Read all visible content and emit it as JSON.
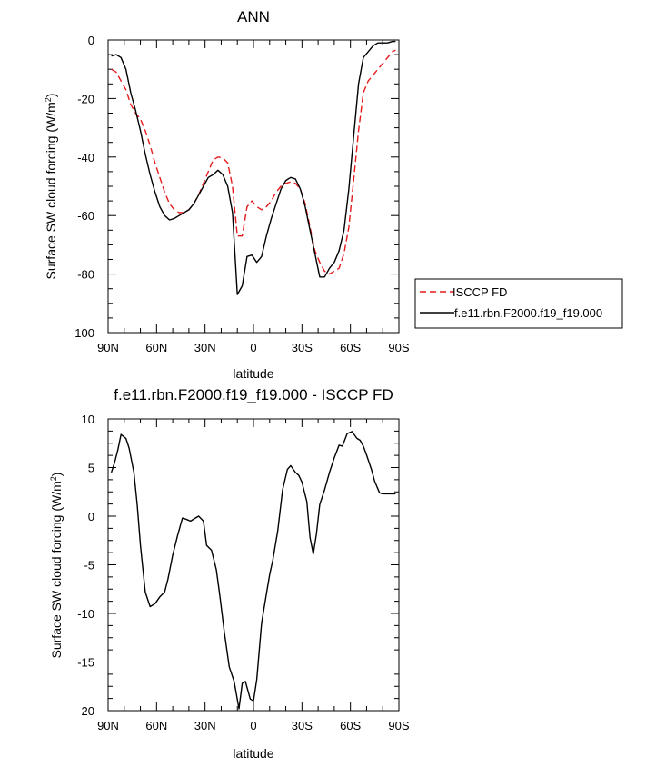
{
  "chart_data": [
    {
      "type": "line",
      "title": "ANN",
      "xlabel": "latitude",
      "ylabel": "Surface SW cloud forcing (W/m",
      "ylabel_sup": "2",
      "ylabel_close": ")",
      "xlim": [
        90,
        -90
      ],
      "ylim": [
        -100,
        0
      ],
      "xticks": [
        90,
        60,
        30,
        0,
        -30,
        -60,
        -90
      ],
      "xtick_labels": [
        "90N",
        "60N",
        "30N",
        "0",
        "30S",
        "60S",
        "90S"
      ],
      "yticks": [
        0,
        -20,
        -40,
        -60,
        -80,
        -100
      ],
      "ytick_labels": [
        "0",
        "-20",
        "-40",
        "-60",
        "-80",
        "-100"
      ],
      "grid": false,
      "legend": "right",
      "series": [
        {
          "name": "ISCCP FD",
          "color": "#e41a1c",
          "dash": "dashed",
          "x": [
            88,
            85,
            82,
            79,
            76,
            73,
            70,
            67,
            64,
            61,
            58,
            55,
            52,
            49,
            46,
            43,
            40,
            37,
            34,
            31,
            28,
            25,
            22,
            19,
            16,
            13,
            10,
            7,
            4,
            1,
            -2,
            -5,
            -8,
            -11,
            -14,
            -17,
            -20,
            -23,
            -26,
            -29,
            -32,
            -35,
            -38,
            -41,
            -44,
            -47,
            -50,
            -53,
            -56,
            -59,
            -62,
            -65,
            -68,
            -71,
            -74,
            -77,
            -80,
            -83,
            -86,
            -88
          ],
          "y": [
            -10,
            -11,
            -14,
            -17,
            -22,
            -25,
            -27,
            -31,
            -36,
            -42,
            -47,
            -52,
            -56,
            -58,
            -59,
            -59,
            -58,
            -56,
            -53,
            -49,
            -45,
            -41,
            -40,
            -40.3,
            -42,
            -50,
            -67,
            -67,
            -57,
            -55,
            -57,
            -58,
            -57,
            -55,
            -52,
            -50,
            -49,
            -48.5,
            -49,
            -51,
            -56,
            -64,
            -72,
            -76,
            -79,
            -80,
            -79,
            -78,
            -73,
            -64,
            -48,
            -31,
            -18,
            -14,
            -12,
            -10,
            -8,
            -6,
            -4,
            -3.5
          ]
        },
        {
          "name": "f.e11.rbn.F2000.f19_f19.000",
          "color": "#000000",
          "dash": "solid",
          "x": [
            88,
            85,
            82,
            79,
            76,
            73,
            70,
            67,
            64,
            61,
            58,
            55,
            52,
            49,
            46,
            43,
            40,
            37,
            34,
            31,
            28,
            25,
            22,
            19,
            16,
            13,
            10,
            7,
            4,
            1,
            -2,
            -5,
            -8,
            -11,
            -14,
            -17,
            -20,
            -23,
            -26,
            -29,
            -32,
            -35,
            -38,
            -41,
            -44,
            -47,
            -50,
            -53,
            -56,
            -59,
            -62,
            -65,
            -68,
            -71,
            -74,
            -77,
            -80,
            -83,
            -86,
            -88
          ],
          "y": [
            -5.5,
            -5,
            -6,
            -10,
            -18,
            -24,
            -31,
            -39,
            -46,
            -52,
            -57,
            -60,
            -61.5,
            -61,
            -60,
            -59,
            -58,
            -56,
            -53,
            -50,
            -47,
            -46,
            -44.5,
            -46,
            -50,
            -59,
            -87,
            -84,
            -74,
            -73.5,
            -76,
            -74,
            -67,
            -61,
            -56,
            -51,
            -48,
            -47,
            -47.5,
            -51,
            -57,
            -65,
            -73,
            -81,
            -81,
            -78,
            -76,
            -72,
            -65,
            -51,
            -33,
            -15,
            -6,
            -4,
            -2,
            -1,
            -1,
            -1,
            -0.5,
            -0.5
          ]
        }
      ]
    },
    {
      "type": "line",
      "title": "f.e11.rbn.F2000.f19_f19.000 - ISCCP FD",
      "xlabel": "latitude",
      "ylabel": "Surface SW cloud forcing (W/m",
      "ylabel_sup": "2",
      "ylabel_close": ")",
      "xlim": [
        90,
        -90
      ],
      "ylim": [
        -20,
        10
      ],
      "xticks": [
        90,
        60,
        30,
        0,
        -30,
        -60,
        -90
      ],
      "xtick_labels": [
        "90N",
        "60N",
        "30N",
        "0",
        "30S",
        "60S",
        "90S"
      ],
      "yticks": [
        10,
        5,
        0,
        -5,
        -10,
        -15,
        -20
      ],
      "ytick_labels": [
        "10",
        "5",
        "0",
        "-5",
        "-10",
        "-15",
        "-20"
      ],
      "grid": false,
      "series": [
        {
          "name": "f.e11.rbn.F2000.f19_f19.000 - ISCCP FD",
          "color": "#000000",
          "dash": "solid",
          "x": [
            88,
            86,
            84,
            82,
            79,
            77,
            74,
            72,
            70,
            67,
            64,
            61,
            58,
            55,
            53,
            50,
            47,
            44,
            42,
            39,
            36,
            34,
            31,
            29,
            26,
            23,
            21,
            18,
            15,
            12,
            9,
            7,
            5,
            2,
            0,
            -2,
            -5,
            -8,
            -10,
            -12,
            -15,
            -18,
            -21,
            -23,
            -26,
            -28,
            -30,
            -33,
            -35,
            -37,
            -39,
            -41,
            -44,
            -47,
            -50,
            -53,
            -55,
            -58,
            -61,
            -64,
            -66,
            -68,
            -70,
            -73,
            -75,
            -78,
            -80,
            -83,
            -86,
            -88
          ],
          "y": [
            4.5,
            5.5,
            6.8,
            8.4,
            8,
            7,
            4.5,
            1.2,
            -3,
            -7.8,
            -9.3,
            -9,
            -8.3,
            -7.8,
            -6.5,
            -4,
            -2,
            -0.2,
            -0.3,
            -0.5,
            -0.2,
            0,
            -0.5,
            -3,
            -3.5,
            -5.5,
            -8,
            -12,
            -15.5,
            -17,
            -19.8,
            -17.2,
            -17,
            -18.8,
            -19,
            -16.8,
            -11,
            -8,
            -6,
            -4.5,
            -1.5,
            2.7,
            4.8,
            5.2,
            4.5,
            4.2,
            3.5,
            1.5,
            -2.2,
            -3.9,
            -1.8,
            1.2,
            2.7,
            4.5,
            6,
            7.3,
            7.2,
            8.5,
            8.7,
            8,
            7.8,
            7.2,
            6.3,
            4.8,
            3.6,
            2.4,
            2.3,
            2.3,
            2.3,
            2.3
          ]
        }
      ]
    }
  ]
}
